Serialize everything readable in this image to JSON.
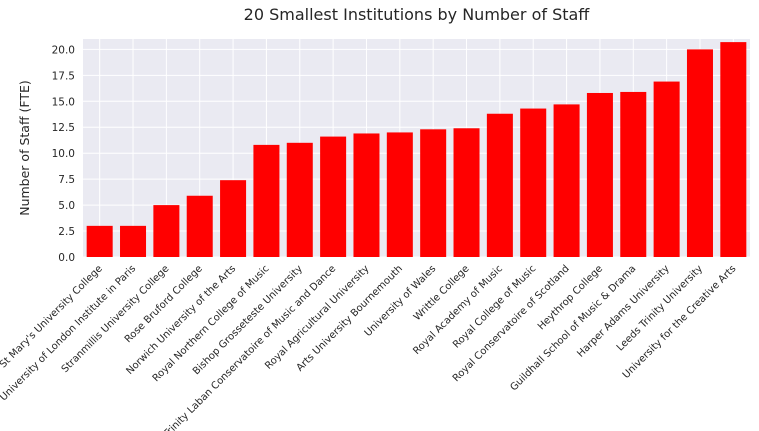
{
  "chart_data": {
    "type": "bar",
    "title": "20 Smallest Institutions by Number of Staff",
    "xlabel": "",
    "ylabel": "Number of Staff (FTE)",
    "ylim": [
      0,
      21
    ],
    "yticks": [
      "0.0",
      "2.5",
      "5.0",
      "7.5",
      "10.0",
      "12.5",
      "15.0",
      "17.5",
      "20.0"
    ],
    "grid": true,
    "bar_color": "#ff0000",
    "background_color": "#eaeaf2",
    "categories": [
      "St Mary's University College",
      "University of London Institute in Paris",
      "Stranmillis University College",
      "Rose Bruford College",
      "Norwich University of the Arts",
      "Royal Northern College of Music",
      "Bishop Grosseteste University",
      "Trinity Laban Conservatoire of Music and Dance",
      "Royal Agricultural University",
      "Arts University Bournemouth",
      "University of Wales",
      "Writtle College",
      "Royal Academy of Music",
      "Royal College of Music",
      "Royal Conservatoire of Scotland",
      "Heythrop College",
      "Guildhall School of Music & Drama",
      "Harper Adams University",
      "Leeds Trinity University",
      "University for the Creative Arts"
    ],
    "values": [
      3.0,
      3.0,
      5.0,
      5.9,
      7.4,
      10.8,
      11.0,
      11.6,
      11.9,
      12.0,
      12.3,
      12.4,
      13.8,
      14.3,
      14.7,
      15.8,
      15.9,
      16.9,
      20.0,
      20.7
    ]
  }
}
